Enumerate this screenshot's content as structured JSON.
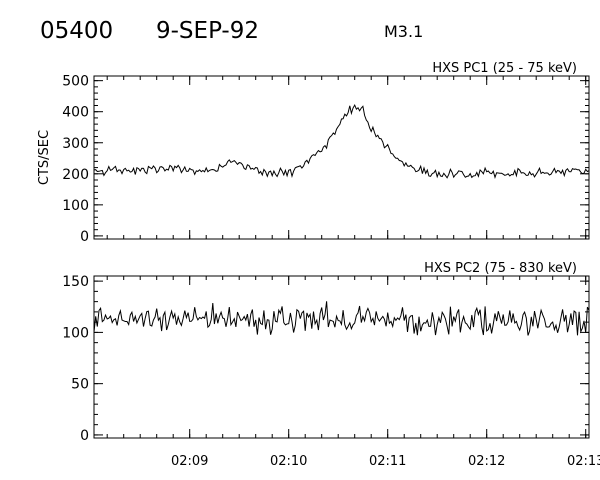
{
  "header": {
    "flare_id": "05400",
    "date": "9-SEP-92",
    "goes_class": "M3.1"
  },
  "chart_data": [
    {
      "type": "line",
      "title": "HXS PC1 (25 - 75 keV)",
      "ylabel": "CTS/SEC",
      "xlabel": "",
      "xlim": [
        "02:08:02",
        "02:13:02"
      ],
      "ylim": [
        -10,
        515
      ],
      "yticks": [
        0,
        100,
        200,
        300,
        400,
        500
      ],
      "yticklabels": [
        "0",
        "100",
        "200",
        "300",
        "400",
        "500"
      ],
      "xticks": [
        "02:09",
        "02:10",
        "02:11",
        "02:12",
        "02:13"
      ],
      "xticklabels": [],
      "grid": false,
      "series": [
        {
          "x": [
            "02:08:02",
            "02:08:14",
            "02:08:26",
            "02:08:38",
            "02:08:50",
            "02:09:02",
            "02:09:14",
            "02:09:26",
            "02:09:38",
            "02:09:50",
            "02:10:02",
            "02:10:14",
            "02:10:20",
            "02:10:26",
            "02:10:32",
            "02:10:36",
            "02:10:40",
            "02:10:44",
            "02:10:48",
            "02:10:54",
            "02:11:00",
            "02:11:06",
            "02:11:12",
            "02:11:24",
            "02:11:36",
            "02:11:48",
            "02:12:00",
            "02:12:12",
            "02:12:24",
            "02:12:36",
            "02:12:48",
            "02:13:02"
          ],
          "values": [
            205,
            210,
            212,
            215,
            220,
            210,
            215,
            240,
            215,
            200,
            205,
            250,
            280,
            320,
            370,
            400,
            415,
            420,
            370,
            320,
            280,
            250,
            230,
            205,
            200,
            200,
            205,
            200,
            205,
            205,
            210,
            205
          ]
        }
      ]
    },
    {
      "type": "line",
      "title": "HXS PC2 (75 - 830 keV)",
      "ylabel": "",
      "xlabel": "",
      "xlim": [
        "02:08:02",
        "02:13:02"
      ],
      "ylim": [
        -3,
        155
      ],
      "yticks": [
        0,
        50,
        100,
        150
      ],
      "yticklabels": [
        "0",
        "50",
        "100",
        "150"
      ],
      "xticks": [
        "02:09",
        "02:10",
        "02:11",
        "02:12",
        "02:13"
      ],
      "xticklabels": [
        "02:09",
        "02:10",
        "02:11",
        "02:12",
        "02:13"
      ],
      "grid": false,
      "series": [
        {
          "x": [
            "02:08:02",
            "02:08:20",
            "02:08:40",
            "02:09:00",
            "02:09:20",
            "02:09:40",
            "02:10:00",
            "02:10:20",
            "02:10:40",
            "02:11:00",
            "02:11:20",
            "02:11:40",
            "02:12:00",
            "02:12:20",
            "02:12:40",
            "02:13:02"
          ],
          "values": [
            113,
            112,
            113,
            112,
            115,
            112,
            111,
            114,
            113,
            112,
            110,
            111,
            112,
            111,
            112,
            110
          ]
        }
      ]
    }
  ]
}
